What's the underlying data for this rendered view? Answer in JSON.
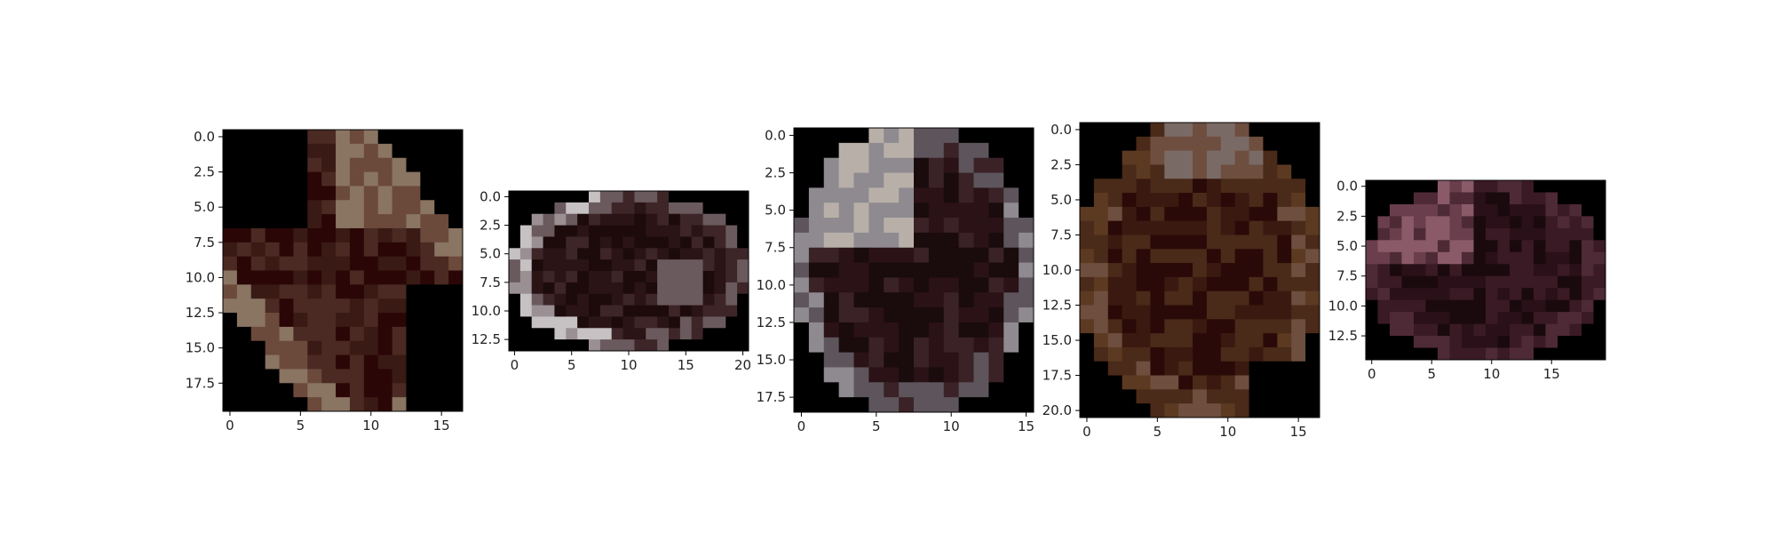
{
  "chart_data": [
    {
      "type": "heatmap",
      "rows": 20,
      "cols": 17,
      "xlim": [
        -0.5,
        16.5
      ],
      "ylim": [
        19.5,
        -0.5
      ],
      "x_ticks": [
        "0",
        "5",
        "10",
        "15"
      ],
      "y_ticks": [
        "0.0",
        "2.5",
        "5.0",
        "7.5",
        "10.0",
        "12.5",
        "15.0",
        "17.5"
      ],
      "x_tick_values": [
        0,
        5,
        10,
        15
      ],
      "y_tick_values": [
        0,
        2.5,
        5,
        7.5,
        10,
        12.5,
        15,
        17.5
      ],
      "shape": "diagonal-blob",
      "palette": [
        "#2a0606",
        "#3a1a14",
        "#4a2a22",
        "#6b4a3c",
        "#8a7462",
        "#a69a8a"
      ]
    },
    {
      "type": "heatmap",
      "rows": 14,
      "cols": 21,
      "xlim": [
        -0.5,
        20.5
      ],
      "ylim": [
        13.5,
        -0.5
      ],
      "x_ticks": [
        "0",
        "5",
        "10",
        "15",
        "20"
      ],
      "y_ticks": [
        "0.0",
        "2.5",
        "5.0",
        "7.5",
        "10.0",
        "12.5"
      ],
      "x_tick_values": [
        0,
        5,
        10,
        15,
        20
      ],
      "y_tick_values": [
        0,
        2.5,
        5,
        7.5,
        10,
        12.5
      ],
      "shape": "ellipse-ring",
      "palette": [
        "#1d0b0c",
        "#2b1416",
        "#3d2528",
        "#6a5a5e",
        "#9a9094",
        "#c6c1c3"
      ]
    },
    {
      "type": "heatmap",
      "rows": 19,
      "cols": 16,
      "xlim": [
        -0.5,
        15.5
      ],
      "ylim": [
        18.5,
        -0.5
      ],
      "x_ticks": [
        "0",
        "5",
        "10",
        "15"
      ],
      "y_ticks": [
        "0.0",
        "2.5",
        "5.0",
        "7.5",
        "10.0",
        "12.5",
        "15.0",
        "17.5"
      ],
      "x_tick_values": [
        0,
        5,
        10,
        15
      ],
      "y_tick_values": [
        0,
        2.5,
        5,
        7.5,
        10,
        12.5,
        15,
        17.5
      ],
      "shape": "round-ring-bright-top-left",
      "palette": [
        "#1a0b0d",
        "#2a1216",
        "#3a2226",
        "#5e555c",
        "#8e8a90",
        "#b8b0a8"
      ]
    },
    {
      "type": "heatmap",
      "rows": 21,
      "cols": 17,
      "xlim": [
        -0.5,
        16.5
      ],
      "ylim": [
        20.5,
        -0.5
      ],
      "x_ticks": [
        "0",
        "5",
        "10",
        "15"
      ],
      "y_ticks": [
        "0.0",
        "2.5",
        "5.0",
        "7.5",
        "10.0",
        "12.5",
        "15.0",
        "17.5",
        "20.0"
      ],
      "x_tick_values": [
        0,
        5,
        10,
        15
      ],
      "y_tick_values": [
        0,
        2.5,
        5,
        7.5,
        10,
        12.5,
        15,
        17.5,
        20
      ],
      "shape": "round-warm",
      "palette": [
        "#2a0a08",
        "#3a1a10",
        "#4a2a18",
        "#5c3a22",
        "#6e4e3e",
        "#7a6a66"
      ]
    },
    {
      "type": "heatmap",
      "rows": 15,
      "cols": 20,
      "xlim": [
        -0.5,
        19.5
      ],
      "ylim": [
        14.5,
        -0.5
      ],
      "x_ticks": [
        "0",
        "5",
        "10",
        "15"
      ],
      "y_ticks": [
        "0.0",
        "2.5",
        "5.0",
        "7.5",
        "10.0",
        "12.5"
      ],
      "x_tick_values": [
        0,
        5,
        10,
        15
      ],
      "y_tick_values": [
        0,
        2.5,
        5,
        7.5,
        10,
        12.5
      ],
      "shape": "round-pink",
      "palette": [
        "#1a0a0e",
        "#2a1018",
        "#3a1a24",
        "#4e2a36",
        "#6a3e4c",
        "#8a5a68"
      ]
    }
  ]
}
